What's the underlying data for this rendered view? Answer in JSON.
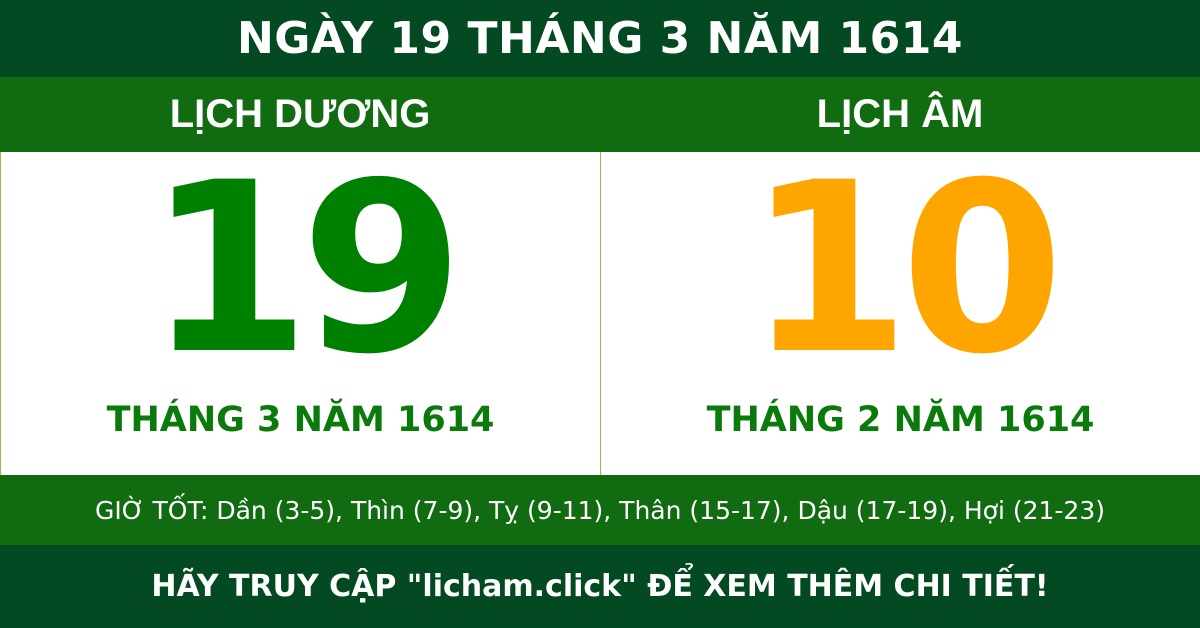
{
  "title": "NGÀY 19 THÁNG 3 NĂM 1614",
  "solar": {
    "heading": "LỊCH DƯƠNG",
    "day": "19",
    "month_year": "THÁNG 3 NĂM 1614"
  },
  "lunar": {
    "heading": "LỊCH ÂM",
    "day": "10",
    "month_year": "THÁNG 2 NĂM 1614"
  },
  "good_hours": "GIỜ TỐT: Dần (3-5), Thìn (7-9), Tỵ (9-11), Thân (15-17), Dậu (17-19), Hợi (21-23)",
  "cta": "HÃY TRUY CẬP \"licham.click\" ĐỂ XEM THÊM CHI TIẾT!",
  "colors": {
    "dark_green": "#034921",
    "green": "#116b10",
    "solar_day": "#008000",
    "lunar_day": "#ffa500"
  }
}
